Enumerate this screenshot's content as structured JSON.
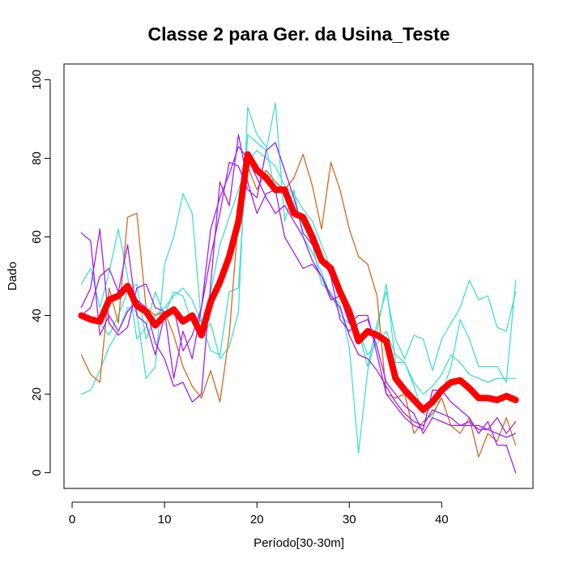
{
  "chart_data": {
    "type": "line",
    "title": "Classe  2 para Ger. da Usina_Teste",
    "xlabel": "Período[30-30m]",
    "ylabel": "Dado",
    "xlim": [
      1,
      48
    ],
    "ylim": [
      0,
      100
    ],
    "x_ticks": [
      0,
      10,
      20,
      30,
      40
    ],
    "y_ticks": [
      0,
      20,
      40,
      60,
      80,
      100
    ],
    "grid": false,
    "legend": "none",
    "x": [
      1,
      2,
      3,
      4,
      5,
      6,
      7,
      8,
      9,
      10,
      11,
      12,
      13,
      14,
      15,
      16,
      17,
      18,
      19,
      20,
      21,
      22,
      23,
      24,
      25,
      26,
      27,
      28,
      29,
      30,
      31,
      32,
      33,
      34,
      35,
      36,
      37,
      38,
      39,
      40,
      41,
      42,
      43,
      44,
      45,
      46,
      47,
      48
    ],
    "series": [
      {
        "color": "#40E0D0",
        "width": 1.3,
        "values": [
          48,
          52,
          42,
          51,
          62,
          50,
          34,
          37,
          46,
          40,
          46,
          45,
          38,
          35,
          38,
          29,
          32,
          41,
          93,
          86,
          83,
          71,
          72,
          68,
          63,
          58,
          48,
          46,
          40,
          38,
          36,
          27,
          38,
          46,
          34,
          29,
          35,
          34,
          26,
          34,
          38,
          42,
          49,
          44,
          45,
          37,
          36,
          46
        ]
      },
      {
        "color": "#40E0D0",
        "width": 1.3,
        "values": [
          20,
          21,
          26,
          32,
          36,
          42,
          41,
          24,
          27,
          53,
          60,
          71,
          66,
          38,
          31,
          30,
          46,
          47,
          86,
          84,
          82,
          94,
          64,
          72,
          60,
          56,
          51,
          45,
          43,
          32,
          5,
          26,
          36,
          48,
          28,
          28,
          22,
          15,
          14,
          20,
          27,
          39,
          34,
          27,
          27,
          27,
          23,
          49
        ]
      },
      {
        "color": "#40E0D0",
        "width": 1.3,
        "values": [
          40,
          39,
          38,
          35,
          40,
          46,
          48,
          34,
          40,
          42,
          45,
          47,
          44,
          38,
          46,
          58,
          65,
          72,
          79,
          82,
          80,
          78,
          73,
          71,
          67,
          64,
          58,
          52,
          46,
          40,
          36,
          30,
          33,
          36,
          30,
          28,
          23,
          20,
          22,
          25,
          30,
          28,
          25,
          24,
          23,
          24,
          24,
          24
        ]
      },
      {
        "color": "#D2691E",
        "width": 1.3,
        "values": [
          30,
          25,
          23,
          47,
          38,
          65,
          66,
          42,
          40,
          41,
          35,
          27,
          22,
          19,
          26,
          18,
          35,
          65,
          78,
          72,
          77,
          74,
          72,
          75,
          81,
          73,
          62,
          79,
          72,
          62,
          55,
          53,
          45,
          20,
          19,
          20,
          10,
          13,
          15,
          19,
          12,
          10,
          14,
          4,
          10,
          8,
          14,
          7
        ]
      },
      {
        "color": "#A020F0",
        "width": 1.3,
        "values": [
          61,
          59,
          35,
          40,
          36,
          41,
          44,
          42,
          33,
          29,
          22,
          23,
          18,
          20,
          48,
          74,
          68,
          86,
          74,
          66,
          71,
          72,
          60,
          56,
          52,
          53,
          50,
          44,
          45,
          38,
          40,
          40,
          30,
          20,
          17,
          14,
          12,
          11,
          21,
          21,
          18,
          16,
          14,
          10,
          13,
          7,
          7,
          0
        ]
      },
      {
        "color": "#A020F0",
        "width": 1.3,
        "values": [
          42,
          47,
          62,
          38,
          35,
          37,
          47,
          48,
          42,
          41,
          24,
          36,
          29,
          42,
          55,
          66,
          79,
          78,
          72,
          70,
          82,
          84,
          77,
          70,
          61,
          58,
          55,
          50,
          39,
          36,
          38,
          39,
          32,
          23,
          20,
          17,
          15,
          10,
          14,
          13,
          12,
          12,
          13,
          11,
          11,
          14,
          10,
          13
        ]
      },
      {
        "color": "#A020F0",
        "width": 1.3,
        "values": [
          40,
          42,
          50,
          52,
          46,
          58,
          40,
          38,
          30,
          40,
          42,
          31,
          35,
          42,
          62,
          70,
          76,
          83,
          80,
          75,
          70,
          66,
          68,
          64,
          60,
          54,
          50,
          45,
          42,
          35,
          30,
          29,
          26,
          22,
          18,
          15,
          13,
          12,
          16,
          15,
          14,
          12,
          12,
          12,
          11,
          10,
          9,
          10
        ]
      },
      {
        "color": "#FF0000",
        "width": 8,
        "values": [
          40,
          39,
          38.5,
          44,
          45,
          47.5,
          42.5,
          41,
          37.5,
          40,
          41.5,
          38.5,
          40,
          35,
          43.5,
          48.5,
          55,
          64,
          81,
          77,
          75,
          72,
          72,
          66,
          65,
          60,
          54,
          52,
          46,
          41,
          33.5,
          36,
          35,
          33.5,
          24,
          21,
          18.5,
          16,
          18,
          21,
          23,
          23.5,
          21.5,
          19,
          19,
          18.5,
          19.5,
          18.5
        ]
      }
    ]
  }
}
